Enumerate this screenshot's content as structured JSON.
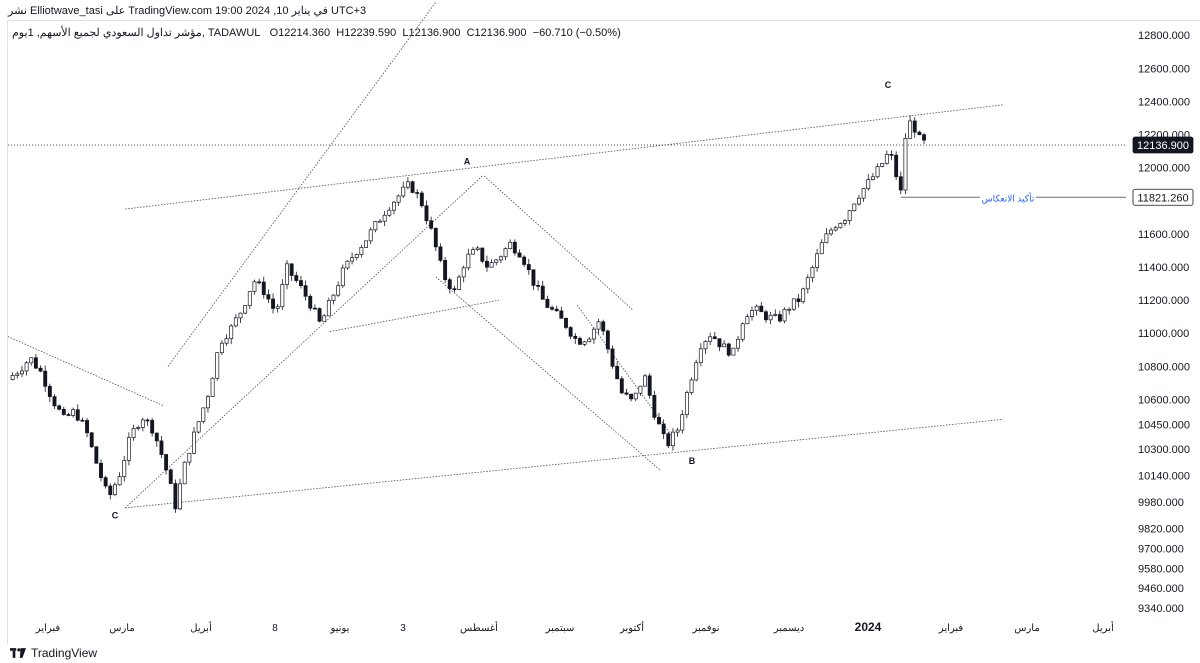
{
  "header": {
    "publish_line": "نشر Elliotwave_tasi على TradingView.com في يناير 10, 2024 19:00 UTC+3"
  },
  "legend": {
    "name": "مؤشر تداول السعودي لجميع الأسهم, 1يوم, TADAWUL",
    "open": "O12214.360",
    "high": "H12239.590",
    "low": "L12136.900",
    "close": "C12136.900",
    "change": "−60.710 (−0.50%)"
  },
  "footer": {
    "brand": "TradingView"
  },
  "chart_data": {
    "type": "candlestick",
    "interval": "1D",
    "y_axis": {
      "min": 9280,
      "max": 12880,
      "ticks": [
        12800,
        12600,
        12400,
        12200,
        12000,
        11800,
        11600,
        11400,
        11200,
        11000,
        10800,
        10600,
        10450,
        10300,
        10140,
        9980,
        9820,
        9700,
        9580,
        9460,
        9340
      ],
      "tick_labels": [
        "12800.000",
        "12600.000",
        "12400.000",
        "12200.000",
        "12000.000",
        "11800.000",
        "11600.000",
        "11400.000",
        "11200.000",
        "11000.000",
        "10800.000",
        "10600.000",
        "10450.000",
        "10300.000",
        "10140.000",
        "9980.000",
        "9820.000",
        "9700.000",
        "9580.000",
        "9460.000",
        "9340.000"
      ]
    },
    "x_axis": {
      "labels": [
        "فبراير",
        "مارس",
        "أبريل",
        "8",
        "يونيو",
        "3",
        "أغسطس",
        "سبتمبر",
        "أكتوبر",
        "نوفمبر",
        "ديسمبر",
        "2024",
        "فبراير",
        "مارس",
        "أبريل"
      ],
      "bold_label": "2024"
    },
    "price_labels": [
      {
        "value": 12136.9,
        "text": "12136.900",
        "style": "dark"
      },
      {
        "value": 11821.26,
        "text": "11821.260",
        "style": "light"
      }
    ],
    "wave_labels": [
      {
        "text": "C",
        "x_label": "مارس",
        "value": 9880
      },
      {
        "text": "A",
        "x_label": "أغسطس",
        "value": 12020
      },
      {
        "text": "B",
        "x_label": "نوفمبر",
        "value": 10210
      },
      {
        "text": "C",
        "x_label": "2024",
        "value": 12480
      }
    ],
    "annotation": {
      "text": "تأكيد الانعكاس",
      "value": 11821.26
    },
    "price_path": [
      [
        0,
        10720
      ],
      [
        0.6,
        10780
      ],
      [
        1.2,
        10850
      ],
      [
        1.8,
        10760
      ],
      [
        2.4,
        10600
      ],
      [
        3,
        10480
      ],
      [
        3.6,
        10530
      ],
      [
        4.2,
        10410
      ],
      [
        4.8,
        10200
      ],
      [
        5.4,
        10000
      ],
      [
        6,
        10150
      ],
      [
        6.6,
        10380
      ],
      [
        7.2,
        10500
      ],
      [
        7.8,
        10420
      ],
      [
        8.4,
        10220
      ],
      [
        9,
        9960
      ],
      [
        9.6,
        10250
      ],
      [
        10.2,
        10450
      ],
      [
        10.8,
        10650
      ],
      [
        11.4,
        10950
      ],
      [
        12,
        11030
      ],
      [
        12.6,
        11150
      ],
      [
        13.2,
        11320
      ],
      [
        13.8,
        11250
      ],
      [
        14.4,
        11120
      ],
      [
        15,
        11390
      ],
      [
        15.6,
        11300
      ],
      [
        16.2,
        11190
      ],
      [
        16.8,
        11050
      ],
      [
        17.4,
        11210
      ],
      [
        18,
        11370
      ],
      [
        18.6,
        11480
      ],
      [
        19.2,
        11560
      ],
      [
        19.8,
        11660
      ],
      [
        20.4,
        11760
      ],
      [
        21,
        11830
      ],
      [
        21.6,
        11900
      ],
      [
        22.2,
        11800
      ],
      [
        22.8,
        11600
      ],
      [
        23.4,
        11350
      ],
      [
        24,
        11250
      ],
      [
        24.6,
        11450
      ],
      [
        25.2,
        11500
      ],
      [
        25.8,
        11400
      ],
      [
        26.4,
        11460
      ],
      [
        27,
        11540
      ],
      [
        27.6,
        11480
      ],
      [
        28.2,
        11320
      ],
      [
        28.8,
        11190
      ],
      [
        29.4,
        11120
      ],
      [
        30,
        11050
      ],
      [
        30.6,
        10950
      ],
      [
        31.2,
        10980
      ],
      [
        31.8,
        11080
      ],
      [
        32.4,
        10850
      ],
      [
        33,
        10640
      ],
      [
        33.6,
        10580
      ],
      [
        34.2,
        10750
      ],
      [
        34.8,
        10500
      ],
      [
        35.4,
        10320
      ],
      [
        36,
        10420
      ],
      [
        36.6,
        10680
      ],
      [
        37.2,
        10930
      ],
      [
        37.8,
        11000
      ],
      [
        38.4,
        10920
      ],
      [
        39,
        10880
      ],
      [
        39.6,
        11120
      ],
      [
        40.2,
        11140
      ],
      [
        40.8,
        11100
      ],
      [
        41.4,
        11080
      ],
      [
        42,
        11160
      ],
      [
        42.6,
        11210
      ],
      [
        43.2,
        11380
      ],
      [
        43.8,
        11550
      ],
      [
        44.4,
        11650
      ],
      [
        45,
        11700
      ],
      [
        45.6,
        11820
      ],
      [
        46.2,
        11900
      ],
      [
        46.8,
        11990
      ],
      [
        47.4,
        12100
      ],
      [
        48,
        11850
      ],
      [
        48.3,
        12250
      ],
      [
        48.6,
        12280
      ],
      [
        49,
        12170
      ],
      [
        49.4,
        12137
      ]
    ],
    "trend_lines": [
      {
        "from": [
          0,
          10980
        ],
        "to": [
          8.4,
          10560
        ]
      },
      {
        "from": [
          6.3,
          11750
        ],
        "to": [
          53.5,
          12380
        ]
      },
      {
        "from": [
          6.3,
          9945
        ],
        "to": [
          25.5,
          11950
        ]
      },
      {
        "from": [
          8.6,
          10800
        ],
        "to": [
          23,
          13000
        ]
      },
      {
        "from": [
          17.3,
          11010
        ],
        "to": [
          26.4,
          11200
        ]
      },
      {
        "from": [
          25.6,
          11950
        ],
        "to": [
          33.6,
          11140
        ]
      },
      {
        "from": [
          23,
          11340
        ],
        "to": [
          35.1,
          10170
        ]
      },
      {
        "from": [
          30.6,
          11170
        ],
        "to": [
          35.7,
          10380
        ]
      },
      {
        "from": [
          6.3,
          9945
        ],
        "to": [
          53.5,
          10480
        ]
      }
    ]
  }
}
